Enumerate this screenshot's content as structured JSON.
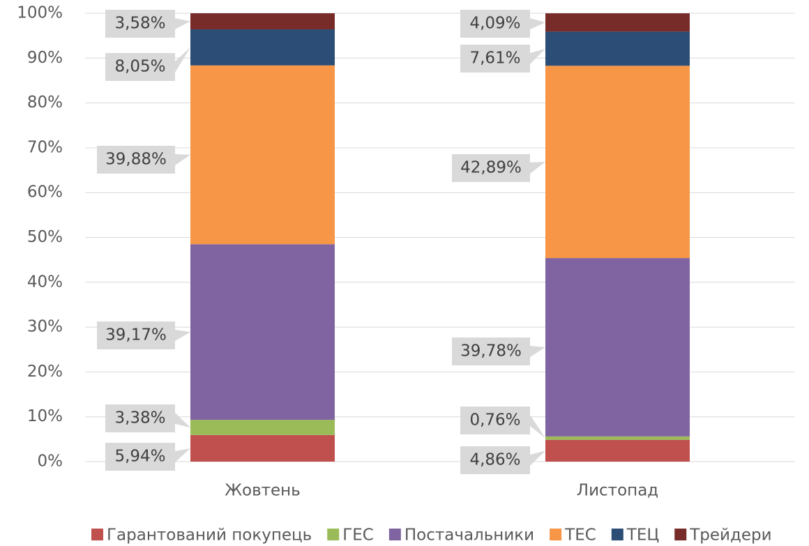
{
  "chart_data": {
    "type": "stacked_bar",
    "categories": [
      "Жовтень",
      "Листопад"
    ],
    "series": [
      {
        "name": "Гарантований покупець",
        "color": "#c0504d",
        "values": [
          5.94,
          4.86
        ],
        "value_labels": [
          "5,94%",
          "4,86%"
        ]
      },
      {
        "name": "ГЕС",
        "color": "#9bbb59",
        "values": [
          3.38,
          0.76
        ],
        "value_labels": [
          "3,38%",
          "0,76%"
        ]
      },
      {
        "name": "Постачальники",
        "color": "#8064a2",
        "values": [
          39.17,
          39.78
        ],
        "value_labels": [
          "39,17%",
          "39,78%"
        ]
      },
      {
        "name": "ТЕС",
        "color": "#f79646",
        "values": [
          39.88,
          42.89
        ],
        "value_labels": [
          "39,88%",
          "42,89%"
        ]
      },
      {
        "name": "ТЕЦ",
        "color": "#2c4d75",
        "values": [
          8.05,
          7.61
        ],
        "value_labels": [
          "8,05%",
          "7,61%"
        ]
      },
      {
        "name": "Трейдери",
        "color": "#772c2a",
        "values": [
          3.58,
          4.09
        ],
        "value_labels": [
          "3,58%",
          "4,09%"
        ]
      }
    ],
    "ylim": [
      0,
      100
    ],
    "yticks": [
      {
        "value": 0,
        "label": "0%"
      },
      {
        "value": 10,
        "label": "10%"
      },
      {
        "value": 20,
        "label": "20%"
      },
      {
        "value": 30,
        "label": "30%"
      },
      {
        "value": 40,
        "label": "40%"
      },
      {
        "value": 50,
        "label": "50%"
      },
      {
        "value": 60,
        "label": "60%"
      },
      {
        "value": 70,
        "label": "70%"
      },
      {
        "value": 80,
        "label": "80%"
      },
      {
        "value": 90,
        "label": "90%"
      },
      {
        "value": 100,
        "label": "100%"
      }
    ],
    "grid": true,
    "legend": "bottom"
  }
}
